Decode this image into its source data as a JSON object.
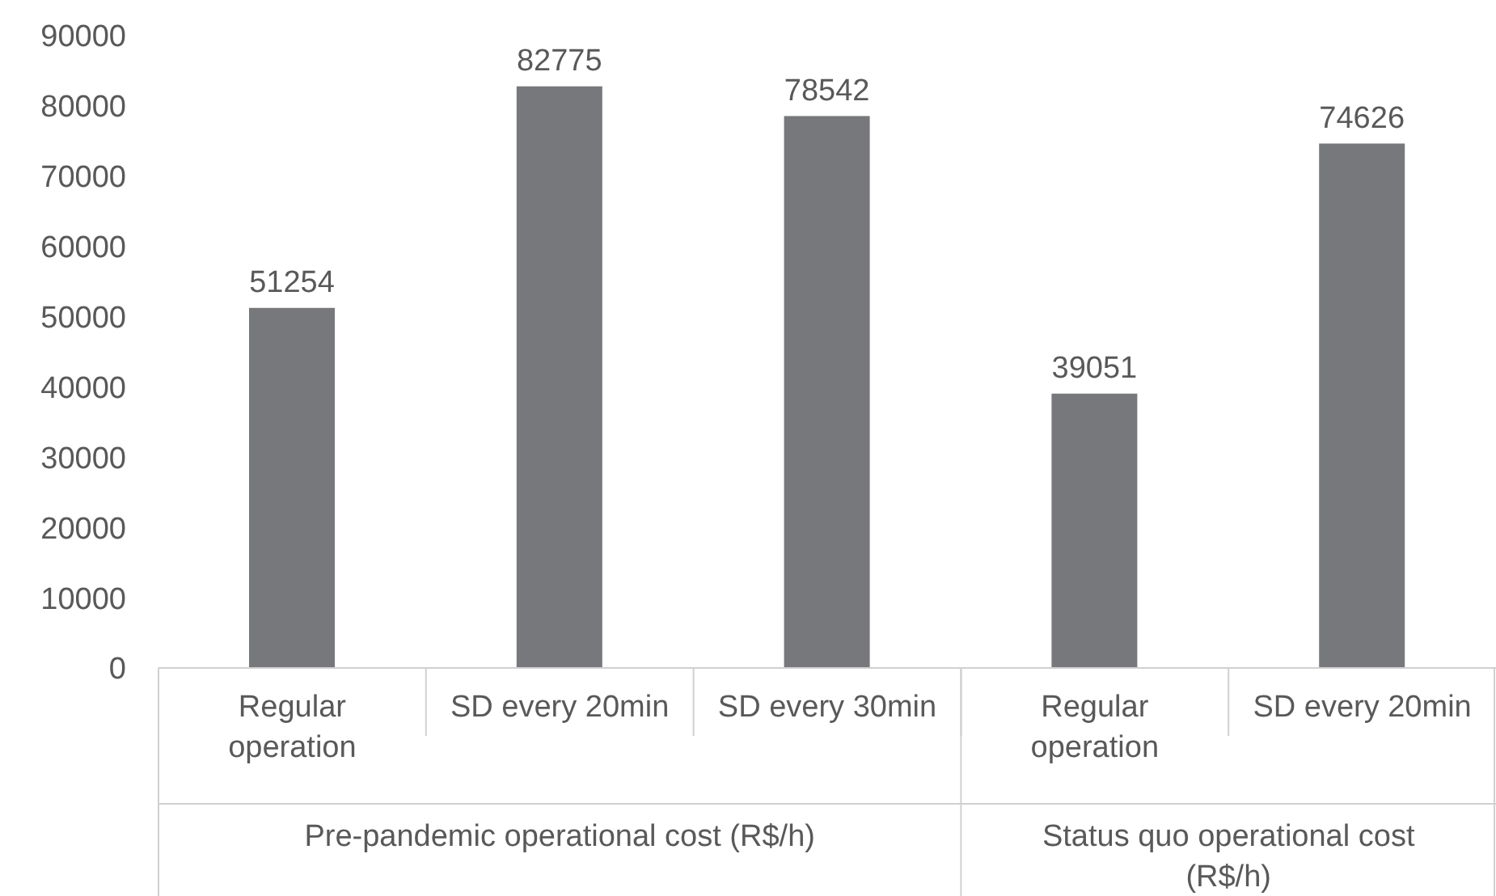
{
  "chart_data": {
    "type": "bar",
    "categories": [
      "Regular operation",
      "SD every 20min",
      "SD every 30min",
      "Regular operation",
      "SD every 20min"
    ],
    "values": [
      51254,
      82775,
      78542,
      39051,
      74626
    ],
    "color": "#77787b",
    "ylim": [
      0,
      90000
    ],
    "yticks": [
      0,
      10000,
      20000,
      30000,
      40000,
      50000,
      60000,
      70000,
      80000,
      90000
    ],
    "data_labels": true,
    "annotations": [
      "Pre-pandemic operational cost (R$/h)",
      "Status quo operational cost (R$/h)"
    ]
  }
}
